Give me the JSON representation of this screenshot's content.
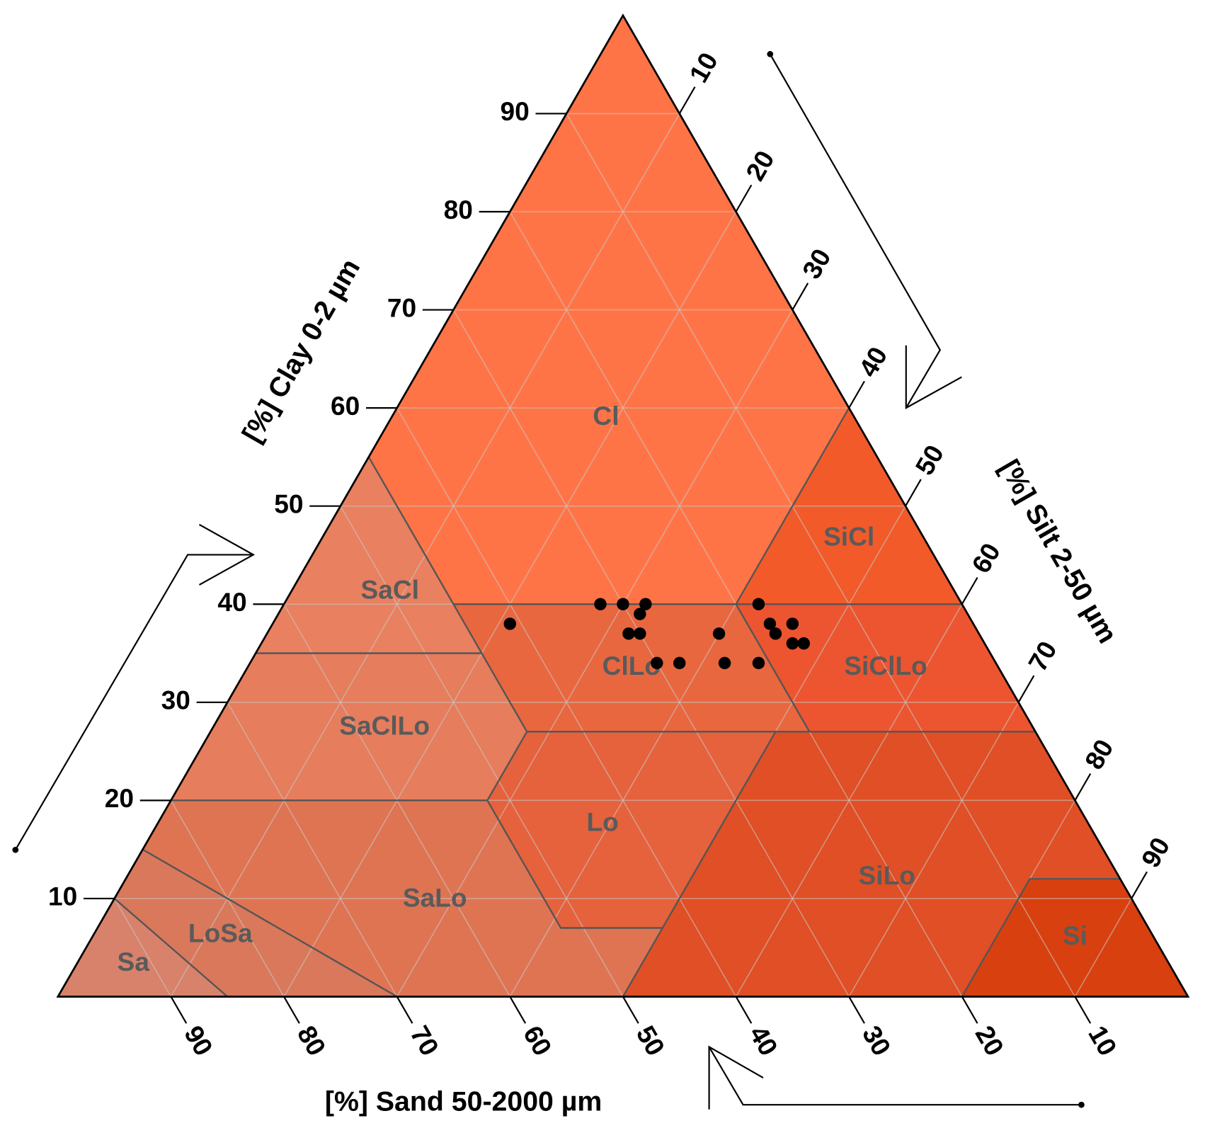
{
  "chart_data": {
    "type": "ternary",
    "axes": {
      "clay": {
        "title": "[%] Clay 0-2 µm",
        "ticks": [
          10,
          20,
          30,
          40,
          50,
          60,
          70,
          80,
          90
        ]
      },
      "silt": {
        "title": "[%] Silt 2-50 µm",
        "ticks": [
          10,
          20,
          30,
          40,
          50,
          60,
          70,
          80,
          90
        ]
      },
      "sand": {
        "title": "[%] Sand 50-2000 µm",
        "ticks": [
          10,
          20,
          30,
          40,
          50,
          60,
          70,
          80,
          90
        ]
      }
    },
    "regions": [
      {
        "label": "Cl",
        "color": "#ff7447",
        "clay": [
          40,
          40,
          60,
          100,
          55
        ],
        "silt": [
          15,
          40,
          40,
          0,
          0
        ]
      },
      {
        "label": "SiCl",
        "color": "#f25a2a",
        "clay": [
          40,
          40,
          60
        ],
        "silt": [
          40,
          60,
          40
        ]
      },
      {
        "label": "SaCl",
        "color": "#e9805f",
        "clay": [
          35,
          55,
          40,
          35
        ],
        "silt": [
          0,
          0,
          15,
          20
        ]
      },
      {
        "label": "ClLo",
        "color": "#e8673f",
        "clay": [
          27,
          27,
          40,
          40
        ],
        "silt": [
          28,
          53,
          40,
          15
        ]
      },
      {
        "label": "SiClLo",
        "color": "#ec5530",
        "clay": [
          27,
          27,
          40,
          40
        ],
        "silt": [
          53,
          73,
          60,
          40
        ]
      },
      {
        "label": "SaClLo",
        "color": "#e67d5c",
        "clay": [
          20,
          35,
          35,
          27,
          20
        ],
        "silt": [
          0,
          0,
          20,
          28,
          28
        ]
      },
      {
        "label": "Lo",
        "color": "#e5623d",
        "clay": [
          7,
          7,
          27,
          27,
          20
        ],
        "silt": [
          41,
          50,
          50,
          28,
          28
        ]
      },
      {
        "label": "SiLo",
        "color": "#e04f25",
        "clay": [
          0,
          0,
          12,
          12,
          27,
          27,
          7
        ],
        "silt": [
          50,
          80,
          80,
          88,
          73,
          50,
          50
        ]
      },
      {
        "label": "SaLo",
        "color": "#df7453",
        "clay": [
          0,
          0,
          7,
          7,
          20,
          20,
          15
        ],
        "silt": [
          30,
          50,
          50,
          41,
          28,
          0,
          0
        ]
      },
      {
        "label": "Si",
        "color": "#d8400f",
        "clay": [
          0,
          0,
          12,
          12
        ],
        "silt": [
          80,
          100,
          88,
          80
        ]
      },
      {
        "label": "LoSa",
        "color": "#da785b",
        "clay": [
          0,
          0,
          15,
          10
        ],
        "silt": [
          15,
          30,
          0,
          0
        ]
      },
      {
        "label": "Sa",
        "color": "#d8826b",
        "clay": [
          0,
          0,
          10
        ],
        "silt": [
          0,
          15,
          0
        ]
      }
    ],
    "points": {
      "color": "#000000",
      "clay": [
        40,
        40,
        40,
        39,
        38,
        37,
        37,
        34,
        34,
        37,
        34,
        40,
        34,
        38,
        37,
        38,
        36,
        36
      ],
      "silt": [
        28,
        30,
        32,
        32,
        21,
        32,
        33,
        36,
        38,
        40,
        42,
        42,
        45,
        44,
        45,
        46,
        47,
        48
      ]
    }
  }
}
